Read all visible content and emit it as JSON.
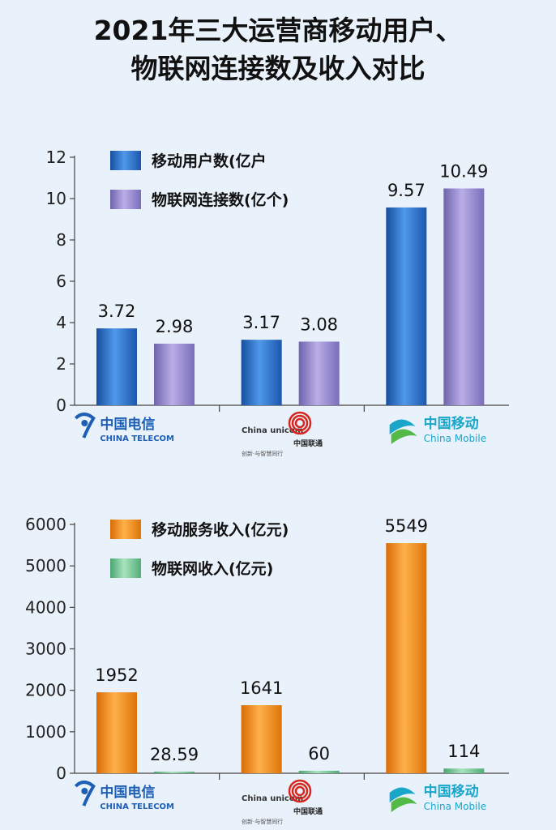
{
  "title_line1": "2021年三大运营商移动用户、",
  "title_line2": "物联网连接数及收入对比",
  "operators": [
    {
      "name": "中国电信",
      "english": "CHINA TELECOM",
      "logo_icon": "china-telecom-logo"
    },
    {
      "name": "中国联通",
      "english": "China unicom",
      "slogan": "创新·与智慧同行",
      "logo_icon": "china-unicom-logo"
    },
    {
      "name": "中国移动",
      "english": "China Mobile",
      "logo_icon": "china-mobile-logo"
    }
  ],
  "colors": {
    "blue": "#2a6fd1",
    "purple": "#9a8cd0",
    "orange": "#f08a1a",
    "green": "#6cc08f",
    "telecom": "#1d5fb5",
    "unicom": "#d6271e",
    "mobile": "#1aa6c9"
  },
  "chart_data": [
    {
      "type": "bar",
      "categories": [
        "中国电信",
        "中国联通",
        "中国移动"
      ],
      "series": [
        {
          "name": "移动用户数(亿户",
          "values": [
            3.72,
            3.17,
            9.57
          ],
          "labels": [
            "3.72",
            "3.17",
            "9.57"
          ]
        },
        {
          "name": "物联网连接数(亿个)",
          "values": [
            2.98,
            3.08,
            10.49
          ],
          "labels": [
            "2.98",
            "3.08",
            "10.49"
          ]
        }
      ],
      "ylim": [
        0,
        12
      ],
      "yticks": [
        0,
        2,
        4,
        6,
        8,
        10,
        12
      ],
      "legend_position": "top-left"
    },
    {
      "type": "bar",
      "categories": [
        "中国电信",
        "中国联通",
        "中国移动"
      ],
      "series": [
        {
          "name": "移动服务收入(亿元)",
          "values": [
            1952,
            1641,
            5549
          ],
          "labels": [
            "1952",
            "1641",
            "5549"
          ]
        },
        {
          "name": "物联网收入(亿元)",
          "values": [
            28.59,
            60,
            114
          ],
          "labels": [
            "28.59",
            "60",
            "114"
          ]
        }
      ],
      "ylim": [
        0,
        6000
      ],
      "yticks": [
        0,
        1000,
        2000,
        3000,
        4000,
        5000,
        6000
      ],
      "legend_position": "top-left"
    }
  ]
}
